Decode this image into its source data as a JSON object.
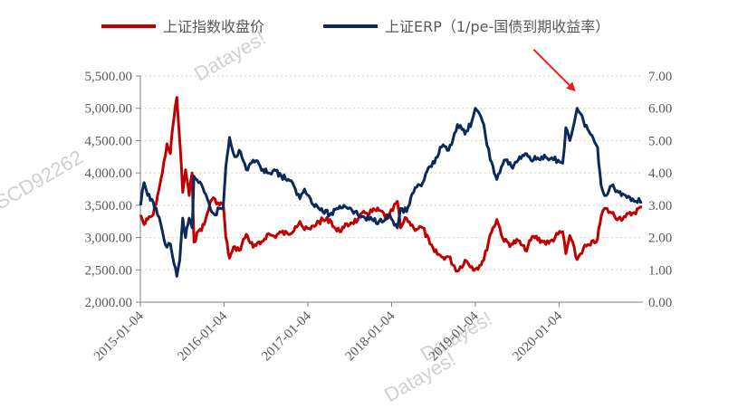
{
  "watermark": {
    "brand": "Datayes!",
    "code": "SCD92262"
  },
  "chart_data": {
    "type": "line",
    "legend_position": "top",
    "grid": "horizontal-dotted",
    "x_ticks": [
      "2015-01-04",
      "2016-01-04",
      "2017-01-04",
      "2018-01-04",
      "2019-01-04",
      "2020-01-04"
    ],
    "x_range": [
      "2015-01-04",
      "2021-01-04"
    ],
    "y_left": {
      "range": [
        2000,
        5500
      ],
      "ticks": [
        "2,000.00",
        "2,500.00",
        "3,000.00",
        "3,500.00",
        "4,000.00",
        "4,500.00",
        "5,000.00",
        "5,500.00"
      ]
    },
    "y_right": {
      "range": [
        0,
        7
      ],
      "ticks": [
        "0.00",
        "1.00",
        "2.00",
        "3.00",
        "4.00",
        "5.00",
        "6.00",
        "7.00"
      ]
    },
    "series": [
      {
        "name": "上证指数收盘价",
        "axis": "left",
        "color": "#C00000",
        "points": [
          [
            "2015-01-05",
            3350
          ],
          [
            "2015-01-20",
            3200
          ],
          [
            "2015-02-05",
            3280
          ],
          [
            "2015-03-01",
            3350
          ],
          [
            "2015-03-20",
            3650
          ],
          [
            "2015-04-10",
            4000
          ],
          [
            "2015-04-30",
            4450
          ],
          [
            "2015-05-15",
            4300
          ],
          [
            "2015-05-25",
            4700
          ],
          [
            "2015-06-12",
            5170
          ],
          [
            "2015-06-25",
            4500
          ],
          [
            "2015-07-08",
            3700
          ],
          [
            "2015-07-20",
            4050
          ],
          [
            "2015-08-05",
            3650
          ],
          [
            "2015-08-18",
            4000
          ],
          [
            "2015-08-26",
            2930
          ],
          [
            "2015-09-15",
            3100
          ],
          [
            "2015-10-10",
            3200
          ],
          [
            "2015-11-05",
            3550
          ],
          [
            "2015-11-25",
            3600
          ],
          [
            "2015-12-15",
            3500
          ],
          [
            "2015-12-31",
            3540
          ],
          [
            "2016-01-12",
            3000
          ],
          [
            "2016-01-28",
            2680
          ],
          [
            "2016-02-20",
            2860
          ],
          [
            "2016-03-10",
            2800
          ],
          [
            "2016-04-10",
            3050
          ],
          [
            "2016-05-10",
            2850
          ],
          [
            "2016-06-10",
            2900
          ],
          [
            "2016-07-10",
            3050
          ],
          [
            "2016-08-10",
            3020
          ],
          [
            "2016-09-10",
            3080
          ],
          [
            "2016-10-10",
            3050
          ],
          [
            "2016-11-10",
            3170
          ],
          [
            "2016-11-30",
            3250
          ],
          [
            "2016-12-20",
            3120
          ],
          [
            "2017-01-15",
            3130
          ],
          [
            "2017-02-20",
            3250
          ],
          [
            "2017-04-10",
            3280
          ],
          [
            "2017-05-10",
            3100
          ],
          [
            "2017-06-10",
            3150
          ],
          [
            "2017-07-10",
            3230
          ],
          [
            "2017-08-10",
            3280
          ],
          [
            "2017-09-10",
            3380
          ],
          [
            "2017-11-10",
            3420
          ],
          [
            "2017-12-20",
            3300
          ],
          [
            "2018-01-29",
            3560
          ],
          [
            "2018-02-12",
            3150
          ],
          [
            "2018-03-10",
            3300
          ],
          [
            "2018-04-10",
            3150
          ],
          [
            "2018-05-20",
            3150
          ],
          [
            "2018-06-20",
            2900
          ],
          [
            "2018-07-10",
            2780
          ],
          [
            "2018-08-10",
            2700
          ],
          [
            "2018-09-10",
            2700
          ],
          [
            "2018-10-18",
            2480
          ],
          [
            "2018-11-20",
            2650
          ],
          [
            "2018-12-20",
            2550
          ],
          [
            "2019-01-04",
            2510
          ],
          [
            "2019-02-10",
            2650
          ],
          [
            "2019-03-10",
            3050
          ],
          [
            "2019-04-08",
            3280
          ],
          [
            "2019-05-10",
            2940
          ],
          [
            "2019-06-10",
            2900
          ],
          [
            "2019-07-10",
            2950
          ],
          [
            "2019-08-10",
            2800
          ],
          [
            "2019-09-15",
            3020
          ],
          [
            "2019-10-20",
            2950
          ],
          [
            "2019-11-20",
            2910
          ],
          [
            "2019-12-31",
            3050
          ],
          [
            "2020-01-20",
            3090
          ],
          [
            "2020-02-03",
            2750
          ],
          [
            "2020-02-20",
            3030
          ],
          [
            "2020-03-23",
            2660
          ],
          [
            "2020-04-20",
            2840
          ],
          [
            "2020-05-20",
            2880
          ],
          [
            "2020-06-20",
            2980
          ],
          [
            "2020-07-06",
            3330
          ],
          [
            "2020-07-20",
            3450
          ],
          [
            "2020-08-20",
            3380
          ],
          [
            "2020-09-20",
            3300
          ],
          [
            "2020-10-20",
            3320
          ],
          [
            "2020-11-20",
            3380
          ],
          [
            "2020-12-31",
            3470
          ]
        ]
      },
      {
        "name": "上证ERP（1/pe-国债到期收益率）",
        "axis": "right",
        "color": "#0B2A5C",
        "points": [
          [
            "2015-01-05",
            3.0
          ],
          [
            "2015-01-20",
            3.7
          ],
          [
            "2015-02-05",
            3.3
          ],
          [
            "2015-03-01",
            3.1
          ],
          [
            "2015-03-20",
            2.7
          ],
          [
            "2015-04-10",
            2.2
          ],
          [
            "2015-04-30",
            1.7
          ],
          [
            "2015-05-15",
            1.8
          ],
          [
            "2015-05-25",
            1.4
          ],
          [
            "2015-06-12",
            0.8
          ],
          [
            "2015-06-25",
            1.3
          ],
          [
            "2015-07-08",
            2.6
          ],
          [
            "2015-07-20",
            2.0
          ],
          [
            "2015-08-05",
            2.6
          ],
          [
            "2015-08-18",
            2.3
          ],
          [
            "2015-08-26",
            3.9
          ],
          [
            "2015-09-15",
            3.7
          ],
          [
            "2015-10-10",
            3.4
          ],
          [
            "2015-11-05",
            2.9
          ],
          [
            "2015-11-25",
            2.7
          ],
          [
            "2015-12-15",
            2.9
          ],
          [
            "2015-12-31",
            2.9
          ],
          [
            "2016-01-12",
            4.2
          ],
          [
            "2016-01-28",
            5.1
          ],
          [
            "2016-02-20",
            4.5
          ],
          [
            "2016-03-10",
            4.7
          ],
          [
            "2016-04-10",
            4.1
          ],
          [
            "2016-05-10",
            4.4
          ],
          [
            "2016-06-10",
            4.2
          ],
          [
            "2016-07-10",
            4.0
          ],
          [
            "2016-08-10",
            4.1
          ],
          [
            "2016-09-10",
            3.9
          ],
          [
            "2016-10-10",
            3.8
          ],
          [
            "2016-11-10",
            3.5
          ],
          [
            "2016-11-30",
            3.2
          ],
          [
            "2016-12-20",
            3.5
          ],
          [
            "2017-01-15",
            3.2
          ],
          [
            "2017-02-20",
            2.9
          ],
          [
            "2017-04-10",
            2.7
          ],
          [
            "2017-05-10",
            2.9
          ],
          [
            "2017-06-10",
            3.0
          ],
          [
            "2017-07-10",
            2.9
          ],
          [
            "2017-08-10",
            2.7
          ],
          [
            "2017-09-10",
            2.6
          ],
          [
            "2017-11-10",
            2.5
          ],
          [
            "2017-12-20",
            2.7
          ],
          [
            "2018-01-29",
            2.3
          ],
          [
            "2018-02-12",
            2.9
          ],
          [
            "2018-03-10",
            2.8
          ],
          [
            "2018-04-10",
            3.4
          ],
          [
            "2018-05-20",
            3.7
          ],
          [
            "2018-06-20",
            4.2
          ],
          [
            "2018-07-10",
            4.3
          ],
          [
            "2018-08-10",
            4.8
          ],
          [
            "2018-09-10",
            4.7
          ],
          [
            "2018-10-18",
            5.5
          ],
          [
            "2018-11-20",
            5.2
          ],
          [
            "2018-12-20",
            5.6
          ],
          [
            "2019-01-04",
            6.0
          ],
          [
            "2019-02-10",
            5.5
          ],
          [
            "2019-03-10",
            4.4
          ],
          [
            "2019-04-08",
            3.8
          ],
          [
            "2019-05-10",
            4.4
          ],
          [
            "2019-06-10",
            4.2
          ],
          [
            "2019-07-10",
            4.4
          ],
          [
            "2019-08-10",
            4.6
          ],
          [
            "2019-09-15",
            4.4
          ],
          [
            "2019-10-20",
            4.5
          ],
          [
            "2019-11-20",
            4.4
          ],
          [
            "2019-12-31",
            4.4
          ],
          [
            "2020-01-20",
            4.3
          ],
          [
            "2020-02-03",
            5.4
          ],
          [
            "2020-02-20",
            5.0
          ],
          [
            "2020-03-23",
            6.0
          ],
          [
            "2020-04-20",
            5.6
          ],
          [
            "2020-05-20",
            5.2
          ],
          [
            "2020-06-20",
            4.8
          ],
          [
            "2020-07-06",
            3.6
          ],
          [
            "2020-07-20",
            3.3
          ],
          [
            "2020-08-20",
            3.6
          ],
          [
            "2020-09-20",
            3.4
          ],
          [
            "2020-10-20",
            3.3
          ],
          [
            "2020-11-20",
            3.2
          ],
          [
            "2020-12-31",
            3.1
          ]
        ]
      }
    ],
    "annotations": [
      {
        "type": "arrow",
        "color": "#E8201A",
        "points_to": [
          "2020-03-23",
          6.0
        ]
      }
    ]
  }
}
